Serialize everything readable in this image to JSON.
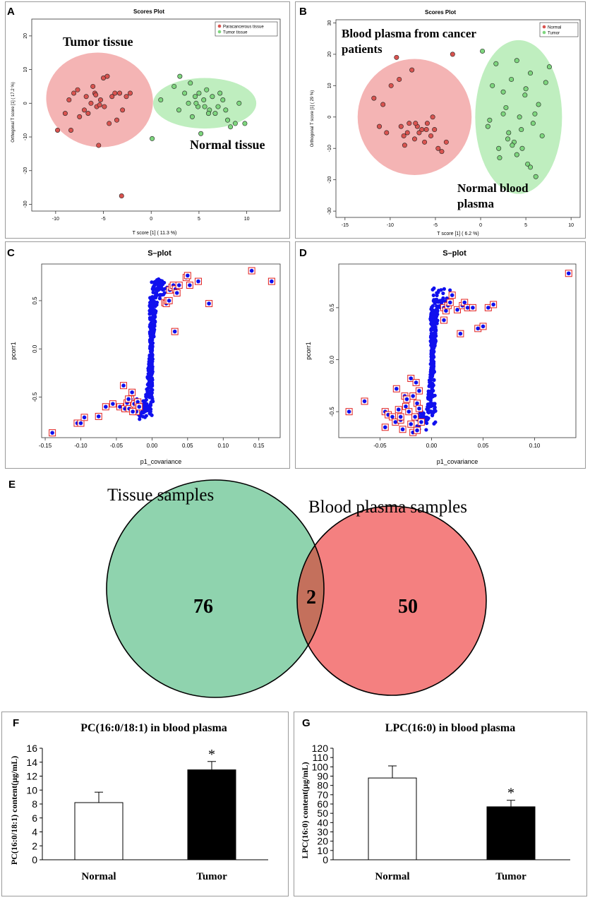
{
  "panels": {
    "A": {
      "letter": "A"
    },
    "B": {
      "letter": "B"
    },
    "C": {
      "letter": "C"
    },
    "D": {
      "letter": "D"
    },
    "E": {
      "letter": "E"
    },
    "F": {
      "letter": "F"
    },
    "G": {
      "letter": "G"
    }
  },
  "colors": {
    "red_ellipse": "#f4b4b4",
    "green_ellipse": "#bfeebf",
    "red_point": "#d9534f",
    "green_point": "#7ed67e",
    "blue_point": "#1010ee",
    "red_box": "#e02020",
    "venn_green": "#8fd3ae",
    "venn_red": "#f48080",
    "venn_overlap": "#c4705c"
  },
  "chart_data": [
    {
      "id": "A",
      "type": "scatter",
      "title": "Scores Plot",
      "xlabel": "T score [1] ( 11.3 %)",
      "ylabel": "Orthogonal T score [1] ( 17.2 %)",
      "xlim": [
        -12.5,
        13.5
      ],
      "ylim": [
        -32,
        25
      ],
      "xticks": [
        -10,
        -5,
        0,
        5,
        10
      ],
      "yticks": [
        -30,
        -20,
        -10,
        0,
        10,
        20
      ],
      "legend": [
        "Paracancerous tissue",
        "Tumor tissue"
      ],
      "annotations": [
        "Tumor tissue",
        "Normal tissue"
      ],
      "series": [
        {
          "name": "Tumor tissue",
          "color": "red",
          "x": [
            -9.8,
            -9.0,
            -8.6,
            -8.4,
            -8.1,
            -7.7,
            -7.5,
            -7.0,
            -6.8,
            -6.6,
            -6.3,
            -6.1,
            -5.9,
            -5.7,
            -5.5,
            -5.3,
            -5.0,
            -4.9,
            -4.6,
            -4.4,
            -4.1,
            -3.8,
            -3.6,
            -3.3,
            -3.0,
            -2.6,
            -2.2,
            -5.8,
            -5.4,
            -3.1
          ],
          "y": [
            -8,
            -3,
            1,
            -8,
            3,
            4,
            -4,
            -2,
            2,
            -3,
            0,
            5,
            3,
            -1,
            -12.5,
            1,
            7.5,
            -1,
            8,
            -6,
            2,
            3,
            -5,
            3,
            -2,
            2,
            3,
            2.5,
            -0.5,
            -27.5
          ]
        },
        {
          "name": "Normal tissue",
          "color": "green",
          "x": [
            0.1,
            2.4,
            3.0,
            3.5,
            3.9,
            4.3,
            4.6,
            4.9,
            5.2,
            5.5,
            5.8,
            6.1,
            6.4,
            6.7,
            7.0,
            7.2,
            7.5,
            8.0,
            8.3,
            8.8,
            9.2,
            9.8,
            4.1,
            5.0,
            6.0,
            1.0,
            2.9,
            7.8,
            4.7,
            5.6
          ],
          "y": [
            -10.5,
            5,
            8,
            3,
            0,
            -4,
            2,
            -1,
            -9,
            1,
            4,
            -2,
            2,
            -3,
            -1,
            3,
            1,
            -5,
            -7,
            -6,
            0,
            -6,
            6,
            3,
            -3,
            1,
            -2,
            -2,
            0,
            -1
          ]
        }
      ]
    },
    {
      "id": "B",
      "type": "scatter",
      "title": "Scores Plot",
      "xlabel": "T score [1] ( 6.2 %)",
      "ylabel": "Orthogonal T score [1] ( 29 %)",
      "xlim": [
        -16,
        11
      ],
      "ylim": [
        -32,
        31
      ],
      "xticks": [
        -15,
        -10,
        -5,
        0,
        5,
        10
      ],
      "yticks": [
        -30,
        -20,
        -10,
        0,
        10,
        20,
        30
      ],
      "legend": [
        "Normal",
        "Tumor"
      ],
      "annotations": [
        "Blood plasma from cancer patients",
        "Normal blood plasma"
      ],
      "series": [
        {
          "name": "Cancer plasma",
          "color": "red",
          "x": [
            -11.8,
            -11.2,
            -10.4,
            -9.9,
            -9.3,
            -8.8,
            -8.5,
            -8.1,
            -7.9,
            -7.6,
            -7.3,
            -7.0,
            -6.8,
            -6.5,
            -6.2,
            -5.9,
            -5.5,
            -5.1,
            -4.7,
            -4.3,
            -3.8,
            -3.1,
            -9.0,
            -7.2,
            -8.4,
            -6.0,
            -10.8,
            -5.3
          ],
          "y": [
            6,
            -3,
            -5,
            10,
            19,
            -3,
            -6,
            -5,
            -2,
            15,
            -7,
            -3,
            -5,
            -4,
            -8,
            -2,
            -6,
            -4,
            -10,
            -11,
            -8,
            20,
            12,
            -2,
            -9,
            -4,
            4,
            0
          ]
        },
        {
          "name": "Normal plasma",
          "color": "green",
          "x": [
            0.2,
            0.8,
            1.3,
            1.7,
            2.1,
            2.5,
            2.8,
            3.1,
            3.4,
            3.7,
            4.0,
            4.3,
            4.6,
            4.9,
            5.2,
            5.5,
            5.8,
            6.1,
            6.4,
            6.8,
            7.2,
            7.6,
            1.0,
            2.0,
            3.0,
            4.0,
            5.0,
            6.0,
            3.5,
            4.5,
            2.5,
            5.5
          ],
          "y": [
            21,
            -3,
            10,
            17,
            -13,
            8,
            3,
            -5,
            12,
            -8,
            18,
            0,
            -10,
            7,
            -15,
            14,
            -2,
            -19,
            4,
            -6,
            11,
            16,
            -1,
            -10,
            -7,
            -12,
            9,
            1,
            -9,
            -4,
            1,
            -16
          ]
        }
      ]
    },
    {
      "id": "C",
      "type": "scatter",
      "title": "S–plot",
      "xlabel": "p1_covariance",
      "ylabel": "pcorr1",
      "xlim": [
        -0.155,
        0.18
      ],
      "ylim": [
        -0.92,
        0.88
      ],
      "xticks": [
        -0.15,
        -0.1,
        -0.05,
        0.0,
        0.05,
        0.1,
        0.15
      ],
      "ytick_labels": [
        "0.5",
        "0.0",
        "-0.5"
      ],
      "yticks": [
        0.5,
        0.0,
        -0.5
      ],
      "boxed": {
        "x": [
          -0.14,
          -0.105,
          -0.1,
          -0.095,
          -0.075,
          -0.065,
          -0.055,
          -0.045,
          -0.04,
          -0.038,
          -0.035,
          -0.032,
          -0.03,
          -0.028,
          -0.025,
          -0.022,
          -0.02,
          -0.018,
          -0.033,
          -0.027,
          0.018,
          0.02,
          0.022,
          0.025,
          0.028,
          0.03,
          0.033,
          0.035,
          0.038,
          0.048,
          0.05,
          0.053,
          0.065,
          0.08,
          0.14,
          0.168,
          0.032,
          0.024
        ],
        "y": [
          -0.87,
          -0.77,
          -0.77,
          -0.71,
          -0.7,
          -0.6,
          -0.57,
          -0.6,
          -0.38,
          -0.62,
          -0.56,
          -0.62,
          -0.52,
          -0.45,
          -0.57,
          -0.65,
          -0.55,
          -0.6,
          -0.52,
          -0.65,
          0.48,
          0.47,
          0.5,
          0.61,
          0.64,
          0.66,
          0.62,
          0.58,
          0.66,
          0.74,
          0.76,
          0.66,
          0.7,
          0.47,
          0.81,
          0.7,
          0.18,
          0.5
        ]
      }
    },
    {
      "id": "D",
      "type": "scatter",
      "title": "S–plot",
      "xlabel": "p1_covariance",
      "ylabel": "pcorr1",
      "xlim": [
        -0.09,
        0.14
      ],
      "ylim": [
        -0.75,
        0.92
      ],
      "xticks": [
        -0.05,
        0.0,
        0.05,
        0.1
      ],
      "ytick_labels": [
        "0.5",
        "0.0",
        "-0.5"
      ],
      "yticks": [
        0.5,
        0.0,
        -0.5
      ],
      "boxed": {
        "x": [
          -0.08,
          -0.065,
          -0.045,
          -0.045,
          -0.042,
          -0.038,
          -0.035,
          -0.032,
          -0.03,
          -0.028,
          -0.025,
          -0.022,
          -0.02,
          -0.018,
          -0.016,
          -0.014,
          -0.012,
          -0.01,
          -0.034,
          -0.026,
          -0.024,
          -0.02,
          -0.015,
          -0.012,
          -0.03,
          -0.018,
          -0.014,
          0.012,
          0.014,
          0.016,
          0.018,
          0.02,
          0.025,
          0.03,
          0.032,
          0.035,
          0.04,
          0.045,
          0.05,
          0.055,
          0.06,
          0.133,
          0.012,
          0.028
        ],
        "y": [
          -0.5,
          -0.4,
          -0.5,
          -0.65,
          -0.53,
          -0.55,
          -0.6,
          -0.48,
          -0.58,
          -0.67,
          -0.45,
          -0.5,
          -0.62,
          -0.35,
          -0.55,
          -0.42,
          -0.47,
          -0.6,
          -0.28,
          -0.35,
          -0.38,
          -0.18,
          -0.22,
          -0.3,
          -0.55,
          -0.7,
          -0.68,
          0.5,
          0.47,
          0.52,
          0.55,
          0.62,
          0.48,
          0.52,
          0.55,
          0.5,
          0.5,
          0.3,
          0.32,
          0.5,
          0.53,
          0.83,
          0.38,
          0.25
        ]
      }
    },
    {
      "id": "E",
      "type": "table",
      "title": "Venn diagram",
      "sets": [
        {
          "label": "Tissue samples",
          "only": "76"
        },
        {
          "label": "Blood plasma  samples",
          "only": "50"
        }
      ],
      "overlap": "2"
    },
    {
      "id": "F",
      "type": "bar",
      "title": "PC(16:0/18:1) in blood plasma",
      "ylabel": "PC(16:0/18:1) content(μg/mL)",
      "categories": [
        "Normal",
        "Tumor"
      ],
      "values": [
        8.2,
        12.9
      ],
      "errors": [
        1.5,
        1.2
      ],
      "ylim": [
        0,
        16
      ],
      "yticks": [
        0,
        2,
        4,
        6,
        8,
        10,
        12,
        14,
        16
      ],
      "significance": [
        "",
        "*"
      ]
    },
    {
      "id": "G",
      "type": "bar",
      "title": "LPC(16:0) in blood plasma",
      "ylabel": "LPC(16:0) content(μg/mL)",
      "categories": [
        "Normal",
        "Tumor"
      ],
      "values": [
        88,
        57
      ],
      "errors": [
        13,
        7
      ],
      "ylim": [
        0,
        120
      ],
      "yticks": [
        0,
        10,
        20,
        30,
        40,
        50,
        60,
        70,
        80,
        90,
        100,
        110,
        120
      ],
      "significance": [
        "",
        "*"
      ]
    }
  ]
}
